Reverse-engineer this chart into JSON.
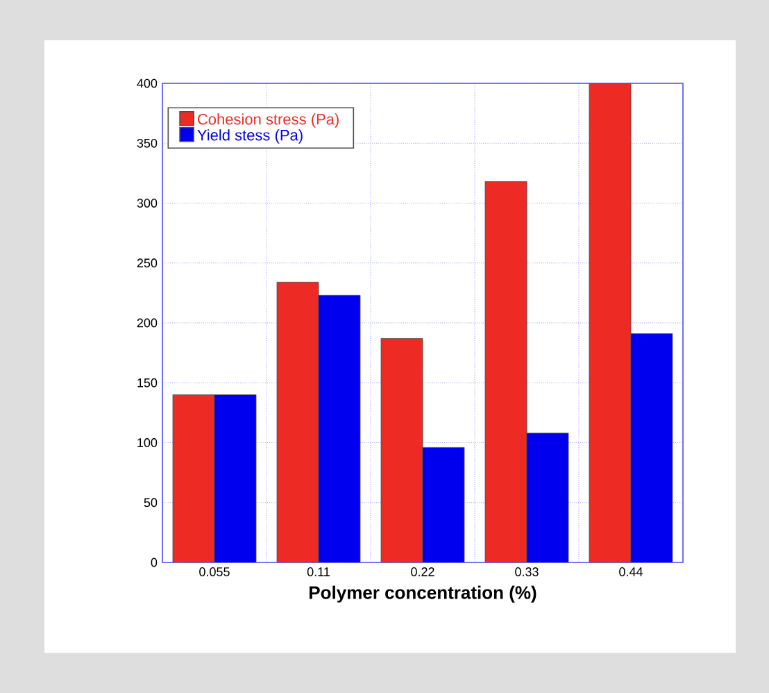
{
  "chart_data": {
    "type": "bar",
    "xlabel": "Polymer concentration (%)",
    "categories": [
      "0.055",
      "0.11",
      "0.22",
      "0.33",
      "0.44"
    ],
    "series": [
      {
        "name": "Cohesion stress (Pa)",
        "color": "#ee2a24",
        "values": [
          140,
          234,
          187,
          318,
          400
        ]
      },
      {
        "name": "Yield stess (Pa)",
        "color": "#0000ee",
        "values": [
          140,
          223,
          96,
          108,
          191
        ]
      }
    ],
    "ylim": [
      0,
      400
    ],
    "yticks": [
      0,
      50,
      100,
      150,
      200,
      250,
      300,
      350,
      400
    ],
    "grid": true,
    "legend": "top left"
  }
}
